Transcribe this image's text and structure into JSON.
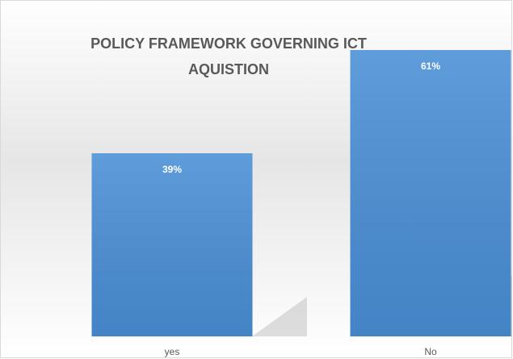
{
  "chart_data": {
    "type": "bar",
    "title": "POLICY FRAMEWORK GOVERNING ICT AQUISTION",
    "categories": [
      "yes",
      "No"
    ],
    "values": [
      39,
      61
    ],
    "value_labels": [
      "39%",
      "61%"
    ],
    "color": "#4a8fd6"
  }
}
